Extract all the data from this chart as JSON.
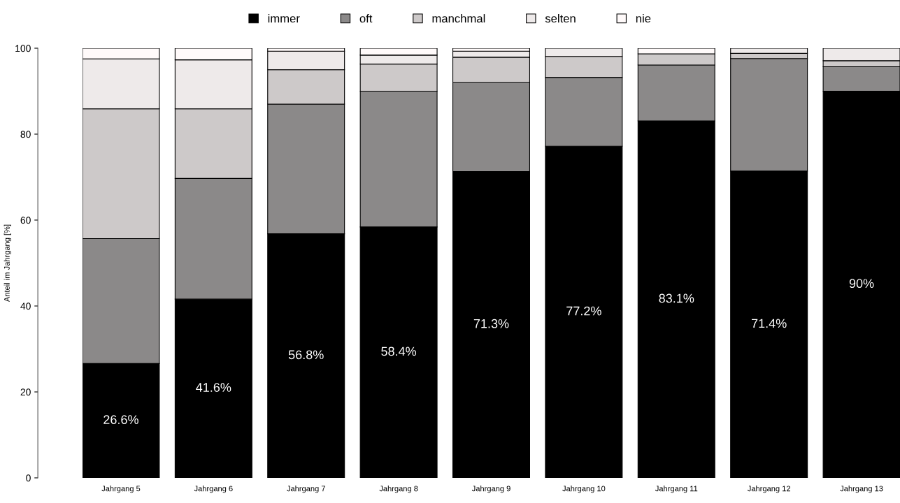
{
  "chart_data": {
    "type": "bar",
    "stacked": true,
    "ylabel": "Anteil im Jahrgang [%]",
    "categories": [
      "Jahrgang 5",
      "Jahrgang 6",
      "Jahrgang 7",
      "Jahrgang 8",
      "Jahrgang 9",
      "Jahrgang 10",
      "Jahrgang 11",
      "Jahrgang 12",
      "Jahrgang 13"
    ],
    "series": [
      {
        "name": "immer",
        "color": "#000000",
        "values": [
          26.6,
          41.6,
          56.8,
          58.4,
          71.3,
          77.2,
          83.1,
          71.4,
          90
        ],
        "value_labels": [
          "26.6%",
          "41.6%",
          "56.8%",
          "58.4%",
          "71.3%",
          "77.2%",
          "83.1%",
          "71.4%",
          "90%"
        ]
      },
      {
        "name": "oft",
        "color": "#8b8989",
        "values": [
          29.1,
          28.1,
          30.2,
          31.6,
          20.7,
          16.0,
          13.0,
          26.2,
          5.7
        ]
      },
      {
        "name": "manchmal",
        "color": "#cdc9c9",
        "values": [
          30.2,
          16.2,
          8.0,
          6.3,
          5.9,
          4.9,
          2.6,
          1.2,
          1.4
        ]
      },
      {
        "name": "selten",
        "color": "#eeeaea",
        "values": [
          11.6,
          11.4,
          4.3,
          2.1,
          1.4,
          1.9,
          0,
          1.2,
          2.9
        ]
      },
      {
        "name": "nie",
        "color": "#fffafa",
        "values": [
          2.5,
          2.7,
          0.7,
          1.6,
          0.7,
          0,
          1.3,
          0,
          0
        ]
      }
    ],
    "ylim": [
      0,
      100
    ],
    "yticks": [
      0,
      20,
      40,
      60,
      80,
      100
    ],
    "grid": false,
    "legend": "top"
  }
}
